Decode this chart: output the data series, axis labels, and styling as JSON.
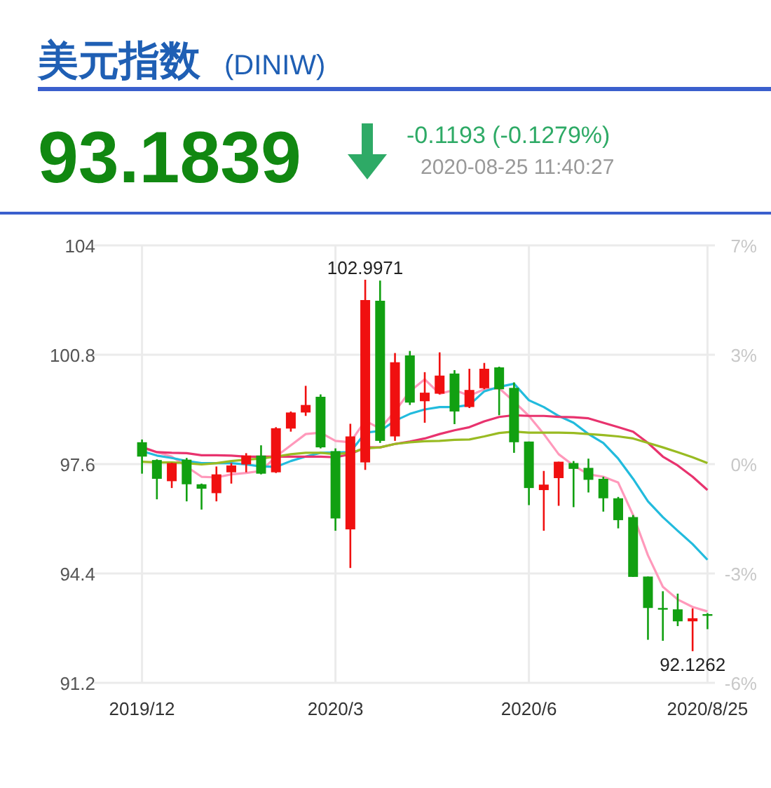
{
  "chart_data": {
    "type": "candlestick",
    "title": "美元指数",
    "subtitle": "(DINIW)",
    "annotations": [
      "93.1839",
      "-0.1193 (-0.1279%)",
      "2020-08-25 11:40:27",
      {
        "text": "102.9971",
        "y": 102.9971
      },
      {
        "text": "92.1262",
        "y": 92.1262
      }
    ],
    "categories": [
      "2019/12",
      null,
      null,
      null,
      null,
      null,
      null,
      null,
      null,
      null,
      null,
      null,
      null,
      "2020/3",
      null,
      null,
      null,
      null,
      null,
      null,
      null,
      null,
      null,
      null,
      null,
      null,
      "2020/6",
      null,
      null,
      null,
      null,
      null,
      null,
      null,
      null,
      null,
      null,
      null,
      "2020/8/25"
    ],
    "ohlc": [
      [
        98.24,
        98.32,
        97.32,
        97.82
      ],
      [
        97.72,
        97.74,
        96.57,
        97.17
      ],
      [
        97.1,
        97.64,
        96.9,
        97.63
      ],
      [
        97.73,
        97.78,
        96.51,
        97.01
      ],
      [
        97.01,
        97.03,
        96.27,
        96.88
      ],
      [
        96.75,
        97.53,
        96.51,
        97.3
      ],
      [
        97.36,
        97.63,
        97.03,
        97.56
      ],
      [
        97.59,
        97.92,
        97.36,
        97.85
      ],
      [
        97.85,
        98.15,
        97.3,
        97.32
      ],
      [
        97.36,
        98.68,
        97.34,
        98.65
      ],
      [
        98.64,
        99.14,
        98.55,
        99.11
      ],
      [
        99.11,
        99.89,
        99.01,
        99.33
      ],
      [
        99.57,
        99.64,
        98.06,
        98.09
      ],
      [
        97.98,
        98.06,
        95.65,
        96.01
      ],
      [
        95.69,
        98.78,
        94.56,
        98.41
      ],
      [
        97.65,
        102.9971,
        97.43,
        102.4
      ],
      [
        102.38,
        102.97,
        98.22,
        98.28
      ],
      [
        98.41,
        100.85,
        98.28,
        100.58
      ],
      [
        100.78,
        100.91,
        99.33,
        99.4
      ],
      [
        99.44,
        100.29,
        98.81,
        99.69
      ],
      [
        99.66,
        100.87,
        99.64,
        100.19
      ],
      [
        100.25,
        100.35,
        98.77,
        99.14
      ],
      [
        99.27,
        100.39,
        99.24,
        99.77
      ],
      [
        99.82,
        100.56,
        99.79,
        100.39
      ],
      [
        100.43,
        100.45,
        99.03,
        99.79
      ],
      [
        99.83,
        99.99,
        97.93,
        98.24
      ],
      [
        98.26,
        98.26,
        96.4,
        96.9
      ],
      [
        96.84,
        97.4,
        95.65,
        97.0
      ],
      [
        97.19,
        97.67,
        96.38,
        97.67
      ],
      [
        97.63,
        97.69,
        96.34,
        97.46
      ],
      [
        97.49,
        97.76,
        96.77,
        97.14
      ],
      [
        97.17,
        97.23,
        96.21,
        96.6
      ],
      [
        96.6,
        96.64,
        95.72,
        95.96
      ],
      [
        96.05,
        96.11,
        94.3,
        94.3
      ],
      [
        94.31,
        94.31,
        92.46,
        93.39
      ],
      [
        93.39,
        93.88,
        92.43,
        93.35
      ],
      [
        93.35,
        93.81,
        92.86,
        93.0
      ],
      [
        93.0,
        93.38,
        92.1262,
        93.09
      ],
      [
        93.21,
        93.24,
        92.77,
        93.18
      ]
    ],
    "colors": [
      "#11a011",
      "#11a011",
      "#f01010",
      "#11a011",
      "#11a011",
      "#f01010",
      "#f01010",
      "#f01010",
      "#11a011",
      "#f01010",
      "#f01010",
      "#f01010",
      "#11a011",
      "#11a011",
      "#f01010",
      "#f01010",
      "#11a011",
      "#f01010",
      "#11a011",
      "#f01010",
      "#f01010",
      "#11a011",
      "#f01010",
      "#f01010",
      "#11a011",
      "#11a011",
      "#11a011",
      "#f01010",
      "#f01010",
      "#11a011",
      "#11a011",
      "#11a011",
      "#11a011",
      "#11a011",
      "#11a011",
      "#11a011",
      "#11a011",
      "#f01010",
      "#11a011"
    ],
    "series": [
      {
        "type": "line",
        "color": "#ff99bb",
        "values": [
          98.11,
          97.95,
          97.82,
          null,
          97.23,
          97.21,
          97.3,
          97.34,
          97.4,
          97.82,
          98.15,
          98.48,
          98.52,
          98.28,
          98.24,
          98.87,
          98.64,
          99.14,
          99.73,
          100.08,
          99.66,
          99.77,
          99.6,
          99.79,
          99.82,
          99.43,
          99.01,
          98.48,
          97.89,
          97.56,
          97.3,
          97.23,
          97.06,
          96.11,
          94.93,
          94.01,
          93.64,
          93.42,
          93.29
        ]
      },
      {
        "type": "line",
        "color": "#22bbdd",
        "values": [
          97.98,
          97.85,
          97.78,
          97.69,
          97.63,
          97.63,
          97.63,
          97.59,
          97.53,
          97.52,
          97.69,
          97.82,
          97.93,
          null,
          97.95,
          98.52,
          98.57,
          98.87,
          99.07,
          99.2,
          99.27,
          99.27,
          99.33,
          99.73,
          99.86,
          99.95,
          99.47,
          99.27,
          99.01,
          98.81,
          98.48,
          98.22,
          97.76,
          97.17,
          96.51,
          96.05,
          95.65,
          95.26,
          94.8
        ]
      },
      {
        "type": "line",
        "color": "#e8336e",
        "values": [
          98.09,
          97.95,
          97.93,
          97.92,
          97.86,
          97.86,
          97.85,
          97.82,
          97.82,
          97.82,
          97.82,
          97.82,
          97.82,
          97.8,
          97.89,
          98.09,
          98.09,
          98.19,
          98.26,
          98.35,
          98.48,
          98.59,
          98.68,
          98.85,
          98.98,
          99.03,
          99.01,
          99.01,
          98.98,
          98.97,
          98.94,
          98.81,
          98.68,
          98.55,
          98.22,
          97.82,
          97.56,
          97.23,
          96.84
        ]
      },
      {
        "type": "line",
        "color": "#99bb22",
        "values": [
          97.67,
          97.65,
          97.65,
          97.63,
          97.59,
          97.63,
          97.69,
          97.73,
          97.76,
          97.82,
          97.89,
          97.93,
          97.93,
          97.89,
          97.93,
          98.06,
          98.09,
          98.19,
          98.24,
          98.27,
          98.28,
          98.31,
          98.32,
          98.41,
          98.51,
          98.55,
          98.52,
          98.52,
          98.52,
          98.51,
          98.48,
          98.45,
          98.41,
          98.35,
          98.22,
          98.09,
          97.95,
          97.8,
          97.63
        ]
      }
    ],
    "ylim": [
      91.2,
      104
    ],
    "yticks": [
      91.2,
      94.4,
      97.6,
      100.8,
      104
    ],
    "y2lim": [
      -6.366,
      6.776
    ],
    "y2ticks": [
      {
        "value": -6.366,
        "label": "-6%"
      },
      {
        "value": -3.08,
        "label": "-3%"
      },
      {
        "value": 0.205,
        "label": "0%"
      },
      {
        "value": 3.491,
        "label": "3%"
      },
      {
        "value": 6.776,
        "label": "7%"
      }
    ],
    "grid": true
  }
}
